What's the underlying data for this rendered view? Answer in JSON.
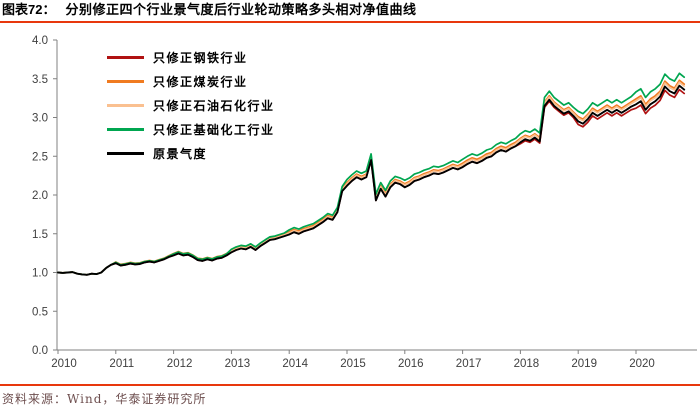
{
  "header": {
    "title_prefix": "图表72：",
    "title": "分别修正四个行业景气度后行业轮动策略多头相对净值曲线"
  },
  "footer": {
    "source": "资料来源：Wind，华泰证券研究所"
  },
  "colors": {
    "accent_rule_red": "#E8380D",
    "title_color": "#000000",
    "source_color": "#6E4F4F",
    "axis_color": "#808080",
    "tick_label_color": "#404040",
    "background": "#FFFFFF"
  },
  "chart_data": {
    "type": "line",
    "title": "",
    "xlabel": "",
    "ylabel": "",
    "grid": false,
    "legend_position": "top-left-inside",
    "x_unit": "month",
    "x_start": "2010-01",
    "x_end": "2020-11",
    "x_tick_labels": [
      "2010",
      "2011",
      "2012",
      "2013",
      "2014",
      "2015",
      "2016",
      "2017",
      "2018",
      "2019",
      "2020"
    ],
    "ylim": [
      0.0,
      4.0
    ],
    "y_tick_step": 0.5,
    "y_tick_labels": [
      "0.0",
      "0.5",
      "1.0",
      "1.5",
      "2.0",
      "2.5",
      "3.0",
      "3.5",
      "4.0"
    ],
    "series": [
      {
        "name": "只修正钢铁行业",
        "color": "#B01212",
        "values": [
          1.0,
          0.995,
          1.0,
          1.005,
          0.985,
          0.975,
          0.97,
          0.985,
          0.98,
          1.0,
          1.06,
          1.1,
          1.12,
          1.09,
          1.1,
          1.115,
          1.105,
          1.11,
          1.13,
          1.14,
          1.13,
          1.15,
          1.17,
          1.2,
          1.22,
          1.245,
          1.22,
          1.23,
          1.2,
          1.16,
          1.15,
          1.17,
          1.155,
          1.18,
          1.19,
          1.22,
          1.26,
          1.29,
          1.31,
          1.3,
          1.33,
          1.29,
          1.34,
          1.38,
          1.42,
          1.43,
          1.45,
          1.47,
          1.49,
          1.52,
          1.5,
          1.53,
          1.55,
          1.57,
          1.61,
          1.65,
          1.7,
          1.68,
          1.78,
          2.05,
          2.12,
          2.18,
          2.23,
          2.2,
          2.23,
          2.45,
          1.93,
          2.08,
          1.98,
          2.1,
          2.16,
          2.14,
          2.1,
          2.13,
          2.18,
          2.2,
          2.23,
          2.25,
          2.28,
          2.27,
          2.29,
          2.32,
          2.35,
          2.33,
          2.36,
          2.4,
          2.43,
          2.41,
          2.44,
          2.48,
          2.5,
          2.55,
          2.58,
          2.56,
          2.6,
          2.63,
          2.66,
          2.7,
          2.68,
          2.72,
          2.67,
          3.13,
          3.21,
          3.13,
          3.08,
          3.03,
          3.06,
          3.0,
          2.91,
          2.88,
          2.94,
          3.02,
          2.98,
          3.02,
          3.06,
          3.02,
          3.06,
          3.02,
          3.06,
          3.1,
          3.12,
          3.16,
          3.05,
          3.12,
          3.16,
          3.22,
          3.35,
          3.29,
          3.26,
          3.36,
          3.31
        ]
      },
      {
        "name": "只修正煤炭行业",
        "color": "#F07B20",
        "values": [
          1.0,
          0.995,
          1.0,
          1.005,
          0.985,
          0.975,
          0.97,
          0.985,
          0.98,
          1.0,
          1.06,
          1.1,
          1.135,
          1.105,
          1.115,
          1.13,
          1.12,
          1.125,
          1.145,
          1.155,
          1.145,
          1.165,
          1.185,
          1.215,
          1.245,
          1.27,
          1.245,
          1.255,
          1.225,
          1.185,
          1.175,
          1.195,
          1.18,
          1.205,
          1.215,
          1.245,
          1.29,
          1.32,
          1.34,
          1.33,
          1.36,
          1.32,
          1.37,
          1.41,
          1.45,
          1.46,
          1.48,
          1.5,
          1.525,
          1.555,
          1.535,
          1.565,
          1.585,
          1.605,
          1.645,
          1.685,
          1.735,
          1.715,
          1.815,
          2.085,
          2.16,
          2.22,
          2.27,
          2.24,
          2.27,
          2.49,
          1.97,
          2.12,
          2.02,
          2.14,
          2.2,
          2.18,
          2.145,
          2.175,
          2.225,
          2.245,
          2.275,
          2.295,
          2.325,
          2.315,
          2.335,
          2.365,
          2.395,
          2.375,
          2.41,
          2.45,
          2.48,
          2.46,
          2.49,
          2.53,
          2.55,
          2.6,
          2.63,
          2.61,
          2.65,
          2.68,
          2.73,
          2.77,
          2.75,
          2.79,
          2.74,
          3.2,
          3.28,
          3.2,
          3.15,
          3.1,
          3.13,
          3.07,
          3.01,
          2.98,
          3.04,
          3.12,
          3.08,
          3.12,
          3.16,
          3.12,
          3.16,
          3.12,
          3.16,
          3.2,
          3.24,
          3.28,
          3.17,
          3.24,
          3.28,
          3.34,
          3.47,
          3.41,
          3.38,
          3.48,
          3.43
        ]
      },
      {
        "name": "只修正石油石化行业",
        "color": "#FAC090",
        "values": [
          1.0,
          0.995,
          1.0,
          1.005,
          0.985,
          0.975,
          0.97,
          0.985,
          0.98,
          1.0,
          1.06,
          1.1,
          1.125,
          1.095,
          1.105,
          1.12,
          1.11,
          1.115,
          1.135,
          1.145,
          1.135,
          1.155,
          1.175,
          1.205,
          1.23,
          1.255,
          1.23,
          1.24,
          1.21,
          1.17,
          1.16,
          1.18,
          1.165,
          1.19,
          1.2,
          1.23,
          1.275,
          1.305,
          1.325,
          1.315,
          1.345,
          1.305,
          1.355,
          1.395,
          1.435,
          1.445,
          1.465,
          1.485,
          1.51,
          1.54,
          1.52,
          1.55,
          1.57,
          1.59,
          1.63,
          1.67,
          1.72,
          1.7,
          1.8,
          2.07,
          2.145,
          2.205,
          2.255,
          2.225,
          2.255,
          2.475,
          1.955,
          2.105,
          2.005,
          2.125,
          2.185,
          2.165,
          2.13,
          2.16,
          2.21,
          2.23,
          2.26,
          2.28,
          2.31,
          2.3,
          2.32,
          2.35,
          2.38,
          2.36,
          2.39,
          2.43,
          2.46,
          2.44,
          2.47,
          2.51,
          2.53,
          2.58,
          2.61,
          2.59,
          2.63,
          2.66,
          2.715,
          2.755,
          2.735,
          2.775,
          2.725,
          3.185,
          3.265,
          3.185,
          3.135,
          3.085,
          3.115,
          3.055,
          2.99,
          2.96,
          3.02,
          3.1,
          3.06,
          3.1,
          3.14,
          3.1,
          3.14,
          3.1,
          3.14,
          3.18,
          3.215,
          3.255,
          3.145,
          3.215,
          3.255,
          3.315,
          3.445,
          3.385,
          3.355,
          3.455,
          3.405
        ]
      },
      {
        "name": "只修正基础化工行业",
        "color": "#00A650",
        "values": [
          1.0,
          0.995,
          1.0,
          1.005,
          0.985,
          0.975,
          0.97,
          0.985,
          0.98,
          1.0,
          1.06,
          1.1,
          1.13,
          1.1,
          1.11,
          1.125,
          1.115,
          1.12,
          1.14,
          1.15,
          1.14,
          1.16,
          1.18,
          1.21,
          1.24,
          1.265,
          1.24,
          1.25,
          1.22,
          1.18,
          1.17,
          1.19,
          1.175,
          1.2,
          1.21,
          1.24,
          1.3,
          1.33,
          1.35,
          1.34,
          1.37,
          1.33,
          1.38,
          1.42,
          1.46,
          1.47,
          1.49,
          1.51,
          1.55,
          1.58,
          1.56,
          1.59,
          1.61,
          1.63,
          1.67,
          1.71,
          1.76,
          1.74,
          1.84,
          2.11,
          2.2,
          2.26,
          2.31,
          2.28,
          2.31,
          2.53,
          2.01,
          2.16,
          2.06,
          2.18,
          2.24,
          2.22,
          2.19,
          2.22,
          2.27,
          2.29,
          2.32,
          2.34,
          2.37,
          2.36,
          2.38,
          2.41,
          2.44,
          2.42,
          2.46,
          2.5,
          2.53,
          2.51,
          2.54,
          2.58,
          2.6,
          2.65,
          2.68,
          2.66,
          2.7,
          2.73,
          2.79,
          2.83,
          2.81,
          2.85,
          2.8,
          3.26,
          3.34,
          3.26,
          3.21,
          3.16,
          3.19,
          3.13,
          3.08,
          3.05,
          3.11,
          3.19,
          3.15,
          3.19,
          3.23,
          3.19,
          3.23,
          3.19,
          3.23,
          3.27,
          3.33,
          3.37,
          3.26,
          3.33,
          3.37,
          3.43,
          3.56,
          3.5,
          3.47,
          3.57,
          3.52
        ]
      },
      {
        "name": "原景气度",
        "color": "#000000",
        "values": [
          1.0,
          0.995,
          1.0,
          1.005,
          0.985,
          0.975,
          0.97,
          0.985,
          0.98,
          1.0,
          1.06,
          1.1,
          1.12,
          1.09,
          1.1,
          1.115,
          1.105,
          1.11,
          1.13,
          1.14,
          1.13,
          1.15,
          1.17,
          1.2,
          1.22,
          1.245,
          1.22,
          1.23,
          1.2,
          1.16,
          1.15,
          1.17,
          1.155,
          1.18,
          1.19,
          1.22,
          1.26,
          1.29,
          1.31,
          1.3,
          1.33,
          1.29,
          1.34,
          1.38,
          1.42,
          1.43,
          1.45,
          1.47,
          1.49,
          1.52,
          1.5,
          1.53,
          1.55,
          1.57,
          1.61,
          1.65,
          1.7,
          1.68,
          1.78,
          2.05,
          2.12,
          2.18,
          2.23,
          2.2,
          2.23,
          2.45,
          1.93,
          2.08,
          1.98,
          2.1,
          2.16,
          2.14,
          2.1,
          2.13,
          2.18,
          2.2,
          2.23,
          2.25,
          2.28,
          2.27,
          2.29,
          2.32,
          2.35,
          2.33,
          2.36,
          2.4,
          2.43,
          2.41,
          2.44,
          2.48,
          2.5,
          2.55,
          2.58,
          2.56,
          2.6,
          2.63,
          2.68,
          2.72,
          2.7,
          2.74,
          2.69,
          3.15,
          3.23,
          3.15,
          3.1,
          3.05,
          3.08,
          3.02,
          2.95,
          2.92,
          2.98,
          3.06,
          3.02,
          3.06,
          3.1,
          3.06,
          3.1,
          3.06,
          3.1,
          3.14,
          3.17,
          3.21,
          3.1,
          3.17,
          3.21,
          3.27,
          3.4,
          3.34,
          3.31,
          3.41,
          3.36
        ]
      }
    ]
  }
}
